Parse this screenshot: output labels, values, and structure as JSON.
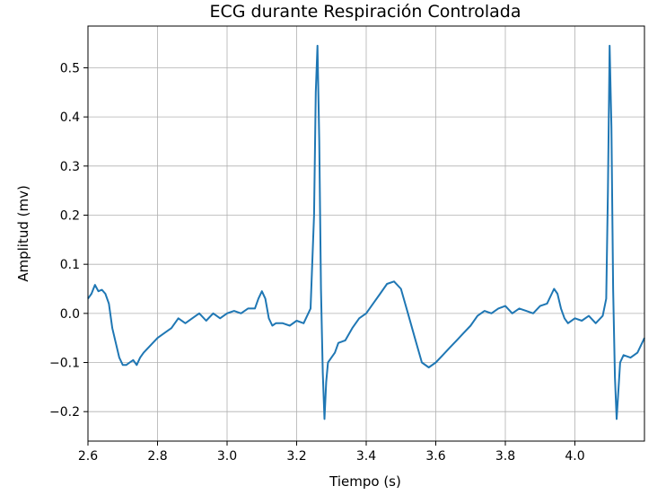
{
  "chart_data": {
    "type": "line",
    "title": "ECG durante Respiración Controlada",
    "xlabel": "Tiempo (s)",
    "ylabel": "Amplitud (mv)",
    "xlim": [
      2.6,
      4.2
    ],
    "ylim": [
      -0.26,
      0.585
    ],
    "xticks": [
      2.6,
      2.8,
      3.0,
      3.2,
      3.4,
      3.6,
      3.8,
      4.0
    ],
    "xtick_labels": [
      "2.6",
      "2.8",
      "3.0",
      "3.2",
      "3.4",
      "3.6",
      "3.8",
      "4.0"
    ],
    "yticks": [
      -0.2,
      -0.1,
      0.0,
      0.1,
      0.2,
      0.3,
      0.4,
      0.5
    ],
    "ytick_labels": [
      "−0.2",
      "−0.1",
      "0.0",
      "0.1",
      "0.2",
      "0.3",
      "0.4",
      "0.5"
    ],
    "grid": true,
    "line_color": "#1f77b4",
    "series": [
      {
        "x": [
          2.6,
          2.61,
          2.62,
          2.63,
          2.64,
          2.65,
          2.66,
          2.67,
          2.68,
          2.69,
          2.7,
          2.71,
          2.72,
          2.73,
          2.74,
          2.75,
          2.76,
          2.78,
          2.8,
          2.82,
          2.84,
          2.86,
          2.88,
          2.9,
          2.92,
          2.94,
          2.96,
          2.98,
          3.0,
          3.02,
          3.04,
          3.06,
          3.08,
          3.09,
          3.1,
          3.11,
          3.12,
          3.13,
          3.14,
          3.16,
          3.18,
          3.2,
          3.22,
          3.24,
          3.25,
          3.255,
          3.26,
          3.265,
          3.27,
          3.275,
          3.28,
          3.285,
          3.29,
          3.3,
          3.31,
          3.32,
          3.34,
          3.36,
          3.38,
          3.4,
          3.42,
          3.44,
          3.46,
          3.48,
          3.5,
          3.52,
          3.54,
          3.56,
          3.58,
          3.6,
          3.62,
          3.64,
          3.66,
          3.68,
          3.7,
          3.72,
          3.74,
          3.76,
          3.78,
          3.8,
          3.82,
          3.84,
          3.86,
          3.88,
          3.9,
          3.92,
          3.94,
          3.95,
          3.96,
          3.97,
          3.98,
          4.0,
          4.02,
          4.04,
          4.06,
          4.08,
          4.09,
          4.095,
          4.1,
          4.105,
          4.11,
          4.115,
          4.12,
          4.13,
          4.14,
          4.16,
          4.18,
          4.2
        ],
        "y": [
          0.03,
          0.04,
          0.058,
          0.045,
          0.048,
          0.04,
          0.02,
          -0.03,
          -0.06,
          -0.09,
          -0.105,
          -0.105,
          -0.1,
          -0.095,
          -0.105,
          -0.09,
          -0.08,
          -0.065,
          -0.05,
          -0.04,
          -0.03,
          -0.01,
          -0.02,
          -0.01,
          0.0,
          -0.015,
          0.0,
          -0.01,
          0.0,
          0.005,
          0.0,
          0.01,
          0.01,
          0.03,
          0.045,
          0.03,
          -0.01,
          -0.025,
          -0.02,
          -0.02,
          -0.025,
          -0.015,
          -0.02,
          0.01,
          0.2,
          0.45,
          0.545,
          0.35,
          0.05,
          -0.12,
          -0.215,
          -0.14,
          -0.1,
          -0.09,
          -0.08,
          -0.06,
          -0.055,
          -0.03,
          -0.01,
          0.0,
          0.02,
          0.04,
          0.06,
          0.065,
          0.05,
          0.0,
          -0.05,
          -0.1,
          -0.11,
          -0.1,
          -0.085,
          -0.07,
          -0.055,
          -0.04,
          -0.025,
          -0.005,
          0.005,
          0.0,
          0.01,
          0.015,
          0.0,
          0.01,
          0.005,
          0.0,
          0.015,
          0.02,
          0.05,
          0.04,
          0.01,
          -0.01,
          -0.02,
          -0.01,
          -0.015,
          -0.005,
          -0.02,
          -0.005,
          0.03,
          0.25,
          0.545,
          0.38,
          0.05,
          -0.13,
          -0.215,
          -0.1,
          -0.085,
          -0.09,
          -0.08,
          -0.05
        ]
      }
    ]
  }
}
